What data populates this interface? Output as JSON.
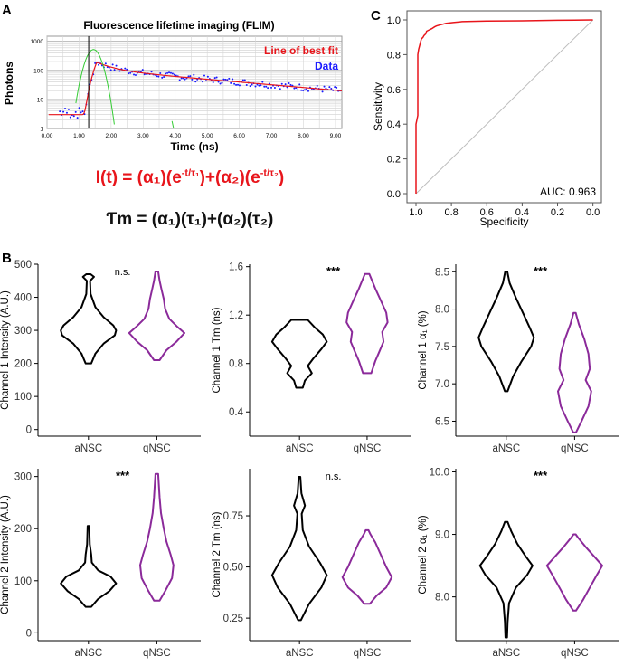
{
  "panel_labels": {
    "a": "A",
    "b": "B",
    "c": "C"
  },
  "formulas": {
    "intensity": "I(t) = (α₁)(e^(-t/τ₁))+(α₂)(e^(-t/τ₂))",
    "tau_m": "Ƭm = (α₁)(τ₁)+(α₂)(τ₂)",
    "intensity_color": "#e8151b",
    "tau_m_color": "#111111"
  },
  "chart_data": [
    {
      "id": "flim",
      "type": "scatter",
      "title": "Fluorescence lifetime imaging (FLIM)",
      "xlabel": "Time (ns)",
      "ylabel": "Photons",
      "y_scale": "log",
      "xlim": [
        0,
        9.2
      ],
      "ylim": [
        1,
        1500
      ],
      "x_ticks": [
        "0.00",
        "1.00",
        "2.00",
        "3.00",
        "4.00",
        "5.00",
        "6.00",
        "7.00",
        "8.00",
        "9.00"
      ],
      "y_ticks": [
        "1",
        "10",
        "100",
        "1000"
      ],
      "legend": [
        "Line of best fit",
        "Data"
      ],
      "legend_colors": [
        "#e8151b",
        "#1a1aff"
      ],
      "fit": {
        "t0": 1.55,
        "peak": 190,
        "a1": 0.45,
        "tau1": 0.5,
        "a2": 0.55,
        "tau2": 4.6,
        "color": "#e8151b"
      },
      "irf": {
        "center": 1.45,
        "width": 0.28,
        "peak": 520,
        "color": "#33cc33"
      },
      "marker_x": 1.3,
      "grid": true
    },
    {
      "id": "roc",
      "type": "line",
      "xlabel": "Specificity",
      "ylabel": "Sensitivity",
      "x_reversed": true,
      "xlim": [
        1.0,
        0.0
      ],
      "ylim": [
        0.0,
        1.0
      ],
      "x_ticks": [
        "1.0",
        "0.8",
        "0.6",
        "0.4",
        "0.2",
        "0.0"
      ],
      "y_ticks": [
        "0.0",
        "0.2",
        "0.4",
        "0.6",
        "0.8",
        "1.0"
      ],
      "annotation": "AUC: 0.963",
      "color": "#e8151b",
      "points": [
        [
          1.0,
          0.0
        ],
        [
          1.0,
          0.4
        ],
        [
          0.99,
          0.45
        ],
        [
          0.99,
          0.8
        ],
        [
          0.985,
          0.83
        ],
        [
          0.98,
          0.85
        ],
        [
          0.975,
          0.87
        ],
        [
          0.97,
          0.89
        ],
        [
          0.96,
          0.9
        ],
        [
          0.955,
          0.91
        ],
        [
          0.945,
          0.92
        ],
        [
          0.94,
          0.935
        ],
        [
          0.93,
          0.94
        ],
        [
          0.92,
          0.945
        ],
        [
          0.91,
          0.95
        ],
        [
          0.895,
          0.96
        ],
        [
          0.885,
          0.965
        ],
        [
          0.87,
          0.97
        ],
        [
          0.85,
          0.975
        ],
        [
          0.83,
          0.98
        ],
        [
          0.79,
          0.985
        ],
        [
          0.74,
          0.99
        ],
        [
          0.6,
          0.993
        ],
        [
          0.4,
          0.995
        ],
        [
          0.2,
          0.998
        ],
        [
          0.0,
          1.0
        ]
      ]
    },
    {
      "id": "violin-ch1-intensity",
      "type": "violin",
      "ylabel": "Channel 1 Intensity (A.U.)",
      "categories": [
        "aNSC",
        "qNSC"
      ],
      "significance": "n.s.",
      "ylim": [
        -20,
        500
      ],
      "y_ticks": [
        0,
        100,
        200,
        300,
        400,
        500
      ],
      "series": [
        {
          "category": "aNSC",
          "color": "#000000",
          "profile": [
            [
              200,
              0.1
            ],
            [
              230,
              0.25
            ],
            [
              260,
              0.55
            ],
            [
              285,
              0.95
            ],
            [
              300,
              1.0
            ],
            [
              315,
              0.9
            ],
            [
              340,
              0.55
            ],
            [
              370,
              0.25
            ],
            [
              410,
              0.08
            ],
            [
              450,
              0.06
            ],
            [
              462,
              0.2
            ],
            [
              470,
              0.08
            ]
          ]
        },
        {
          "category": "qNSC",
          "color": "#8b2a9a",
          "profile": [
            [
              210,
              0.1
            ],
            [
              240,
              0.35
            ],
            [
              265,
              0.7
            ],
            [
              292,
              1.0
            ],
            [
              310,
              0.75
            ],
            [
              335,
              0.45
            ],
            [
              365,
              0.3
            ],
            [
              395,
              0.25
            ],
            [
              420,
              0.18
            ],
            [
              450,
              0.1
            ],
            [
              478,
              0.05
            ]
          ]
        }
      ]
    },
    {
      "id": "violin-ch1-tm",
      "type": "violin",
      "ylabel": "Channel 1 Tm (ns)",
      "categories": [
        "aNSC",
        "qNSC"
      ],
      "significance": "***",
      "ylim": [
        0.2,
        1.62
      ],
      "y_ticks": [
        "0.4",
        "0.8",
        "1.2",
        "1.6"
      ],
      "series": [
        {
          "category": "aNSC",
          "color": "#000000",
          "profile": [
            [
              0.6,
              0.12
            ],
            [
              0.66,
              0.2
            ],
            [
              0.72,
              0.45
            ],
            [
              0.78,
              0.3
            ],
            [
              0.84,
              0.5
            ],
            [
              0.92,
              0.8
            ],
            [
              0.98,
              1.0
            ],
            [
              1.04,
              0.85
            ],
            [
              1.1,
              0.55
            ],
            [
              1.16,
              0.3
            ]
          ]
        },
        {
          "category": "qNSC",
          "color": "#8b2a9a",
          "profile": [
            [
              0.72,
              0.15
            ],
            [
              0.82,
              0.3
            ],
            [
              0.9,
              0.45
            ],
            [
              0.98,
              0.6
            ],
            [
              1.06,
              0.55
            ],
            [
              1.14,
              0.75
            ],
            [
              1.22,
              0.7
            ],
            [
              1.32,
              0.5
            ],
            [
              1.42,
              0.3
            ],
            [
              1.54,
              0.08
            ]
          ]
        }
      ]
    },
    {
      "id": "violin-ch1-a1",
      "type": "violin",
      "ylabel": "Channel 1 α₁ (%)",
      "categories": [
        "aNSC",
        "qNSC"
      ],
      "significance": "***",
      "ylim": [
        6.3,
        8.6
      ],
      "y_ticks": [
        "6.5",
        "7.0",
        "7.5",
        "8.0",
        "8.5"
      ],
      "series": [
        {
          "category": "aNSC",
          "color": "#000000",
          "profile": [
            [
              6.9,
              0.05
            ],
            [
              7.1,
              0.25
            ],
            [
              7.3,
              0.55
            ],
            [
              7.5,
              0.9
            ],
            [
              7.62,
              1.0
            ],
            [
              7.75,
              0.85
            ],
            [
              7.95,
              0.6
            ],
            [
              8.15,
              0.35
            ],
            [
              8.35,
              0.12
            ],
            [
              8.5,
              0.04
            ]
          ]
        },
        {
          "category": "qNSC",
          "color": "#8b2a9a",
          "profile": [
            [
              6.35,
              0.05
            ],
            [
              6.5,
              0.25
            ],
            [
              6.7,
              0.5
            ],
            [
              6.9,
              0.6
            ],
            [
              7.05,
              0.4
            ],
            [
              7.2,
              0.55
            ],
            [
              7.4,
              0.5
            ],
            [
              7.6,
              0.35
            ],
            [
              7.8,
              0.15
            ],
            [
              7.95,
              0.04
            ]
          ]
        }
      ]
    },
    {
      "id": "violin-ch2-intensity",
      "type": "violin",
      "ylabel": "Channel 2 Intensity (A.U.)",
      "categories": [
        "aNSC",
        "qNSC"
      ],
      "significance": "***",
      "ylim": [
        -15,
        315
      ],
      "y_ticks": [
        0,
        100,
        200,
        300
      ],
      "series": [
        {
          "category": "aNSC",
          "color": "#000000",
          "profile": [
            [
              50,
              0.1
            ],
            [
              65,
              0.35
            ],
            [
              80,
              0.75
            ],
            [
              95,
              1.0
            ],
            [
              108,
              0.8
            ],
            [
              120,
              0.35
            ],
            [
              135,
              0.12
            ],
            [
              150,
              0.1
            ],
            [
              170,
              0.05
            ],
            [
              205,
              0.03
            ]
          ]
        },
        {
          "category": "qNSC",
          "color": "#8b2a9a",
          "profile": [
            [
              62,
              0.1
            ],
            [
              80,
              0.3
            ],
            [
              105,
              0.55
            ],
            [
              130,
              0.6
            ],
            [
              150,
              0.5
            ],
            [
              175,
              0.35
            ],
            [
              200,
              0.25
            ],
            [
              230,
              0.15
            ],
            [
              260,
              0.1
            ],
            [
              305,
              0.05
            ]
          ]
        }
      ]
    },
    {
      "id": "violin-ch2-tm",
      "type": "violin",
      "ylabel": "Channel 2 Tm (ns)",
      "categories": [
        "aNSC",
        "qNSC"
      ],
      "significance": "n.s.",
      "ylim": [
        0.14,
        0.98
      ],
      "y_ticks": [
        "0.25",
        "0.50",
        "0.75"
      ],
      "series": [
        {
          "category": "aNSC",
          "color": "#000000",
          "profile": [
            [
              0.24,
              0.05
            ],
            [
              0.32,
              0.35
            ],
            [
              0.4,
              0.8
            ],
            [
              0.46,
              1.0
            ],
            [
              0.52,
              0.75
            ],
            [
              0.6,
              0.35
            ],
            [
              0.68,
              0.12
            ],
            [
              0.76,
              0.08
            ],
            [
              0.8,
              0.2
            ],
            [
              0.86,
              0.07
            ],
            [
              0.94,
              0.03
            ]
          ]
        },
        {
          "category": "qNSC",
          "color": "#8b2a9a",
          "profile": [
            [
              0.32,
              0.1
            ],
            [
              0.36,
              0.35
            ],
            [
              0.4,
              0.7
            ],
            [
              0.45,
              0.9
            ],
            [
              0.5,
              0.7
            ],
            [
              0.56,
              0.5
            ],
            [
              0.62,
              0.3
            ],
            [
              0.66,
              0.12
            ],
            [
              0.68,
              0.05
            ]
          ]
        }
      ]
    },
    {
      "id": "violin-ch2-a1",
      "type": "violin",
      "ylabel": "Channel 2 α₁ (%)",
      "categories": [
        "aNSC",
        "qNSC"
      ],
      "significance": "***",
      "ylim": [
        7.3,
        10.05
      ],
      "y_ticks": [
        "8.0",
        "9.0",
        "10.0"
      ],
      "series": [
        {
          "category": "aNSC",
          "color": "#000000",
          "profile": [
            [
              7.35,
              0.03
            ],
            [
              7.6,
              0.05
            ],
            [
              7.9,
              0.1
            ],
            [
              8.15,
              0.35
            ],
            [
              8.35,
              0.75
            ],
            [
              8.5,
              0.95
            ],
            [
              8.65,
              0.7
            ],
            [
              8.85,
              0.4
            ],
            [
              9.05,
              0.18
            ],
            [
              9.2,
              0.05
            ]
          ]
        },
        {
          "category": "qNSC",
          "color": "#8b2a9a",
          "profile": [
            [
              7.78,
              0.05
            ],
            [
              7.95,
              0.3
            ],
            [
              8.15,
              0.55
            ],
            [
              8.35,
              0.8
            ],
            [
              8.5,
              1.0
            ],
            [
              8.65,
              0.7
            ],
            [
              8.8,
              0.4
            ],
            [
              8.95,
              0.12
            ],
            [
              9.0,
              0.04
            ]
          ]
        }
      ]
    }
  ]
}
